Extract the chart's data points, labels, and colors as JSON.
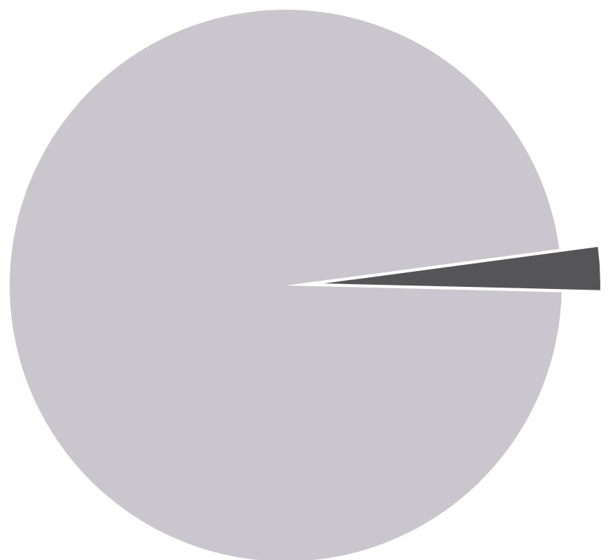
{
  "chart_data": {
    "type": "pie",
    "categories": [
      null,
      null
    ],
    "values": [
      97.5,
      2.5
    ],
    "colors": [
      "#c9c7cd",
      "#555558"
    ]
  }
}
